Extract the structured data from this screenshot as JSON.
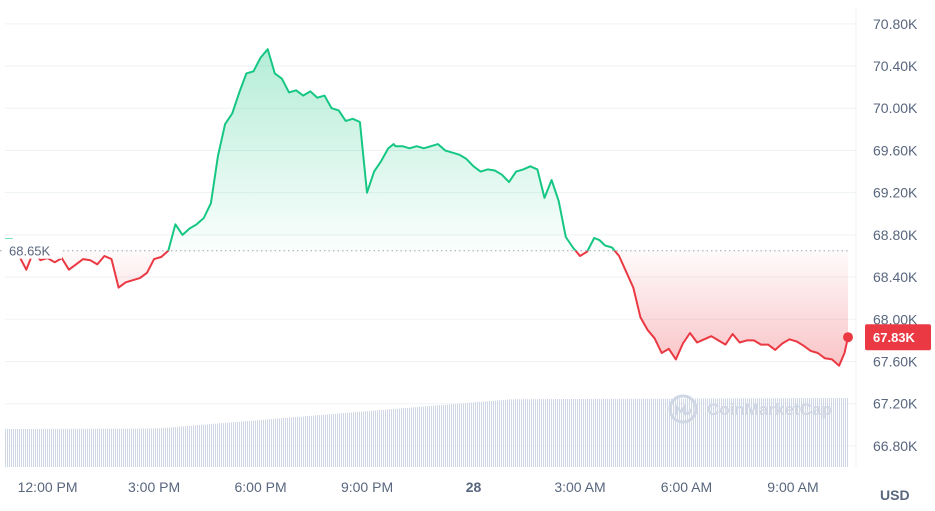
{
  "colors": {
    "up": "#16c784",
    "down": "#ea3943",
    "grid": "#eff2f5",
    "axis_text": "#58667e",
    "volume": "#cfd6e4",
    "watermark": "#cfd6e4"
  },
  "currency_label": "USD",
  "reference_label": "68.65K",
  "current_price_label": "67.83K",
  "watermark": {
    "text": "CoinMarketCap",
    "icon": "coinmarketcap-logo-icon"
  },
  "chart_data": {
    "type": "area",
    "reference_price": 68650,
    "current_price": 67830,
    "ylim": [
      66600,
      70950
    ],
    "y_ticks": [
      {
        "value": 70800,
        "label": "70.80K"
      },
      {
        "value": 70400,
        "label": "70.40K"
      },
      {
        "value": 70000,
        "label": "70.00K"
      },
      {
        "value": 69600,
        "label": "69.60K"
      },
      {
        "value": 69200,
        "label": "69.20K"
      },
      {
        "value": 68800,
        "label": "68.80K"
      },
      {
        "value": 68400,
        "label": "68.40K"
      },
      {
        "value": 68000,
        "label": "68.00K"
      },
      {
        "value": 67600,
        "label": "67.60K"
      },
      {
        "value": 67200,
        "label": "67.20K"
      },
      {
        "value": 66800,
        "label": "66.80K"
      }
    ],
    "xlim": [
      10.8,
      34.55
    ],
    "x_ticks": [
      {
        "value": 12,
        "label": "12:00 PM",
        "bold": false
      },
      {
        "value": 15,
        "label": "3:00 PM",
        "bold": false
      },
      {
        "value": 18,
        "label": "6:00 PM",
        "bold": false
      },
      {
        "value": 21,
        "label": "9:00 PM",
        "bold": false
      },
      {
        "value": 24,
        "label": "28",
        "bold": true
      },
      {
        "value": 27,
        "label": "3:00 AM",
        "bold": false
      },
      {
        "value": 30,
        "label": "6:00 AM",
        "bold": false
      },
      {
        "value": 33,
        "label": "9:00 AM",
        "bold": false
      }
    ],
    "series": [
      {
        "x": [
          10.8,
          11.0,
          11.2,
          11.4,
          11.6,
          11.8,
          12.0,
          12.2,
          12.4,
          12.6,
          12.8,
          13.0,
          13.2,
          13.4,
          13.6,
          13.8,
          14.0,
          14.2,
          14.4,
          14.6,
          14.8,
          15.0,
          15.2,
          15.4,
          15.6,
          15.8,
          16.0,
          16.2,
          16.4,
          16.6,
          16.8,
          17.0,
          17.2,
          17.4,
          17.6,
          17.8,
          18.0,
          18.2,
          18.4,
          18.6,
          18.8,
          19.0,
          19.2,
          19.4,
          19.6,
          19.8,
          20.0,
          20.2,
          20.4,
          20.6,
          20.8,
          21.0,
          21.2,
          21.4,
          21.6,
          21.75,
          21.8,
          22.0,
          22.2,
          22.4,
          22.6,
          22.8,
          23.0,
          23.2,
          23.4,
          23.6,
          23.8,
          24.0,
          24.2,
          24.4,
          24.6,
          24.8,
          25.0,
          25.2,
          25.4,
          25.6,
          25.8,
          26.0,
          26.2,
          26.4,
          26.6,
          26.8,
          27.0,
          27.2,
          27.4,
          27.55,
          27.7,
          27.9,
          28.1,
          28.3,
          28.5,
          28.7,
          28.9,
          29.1,
          29.3,
          29.5,
          29.7,
          29.9,
          30.1,
          30.3,
          30.5,
          30.7,
          30.9,
          31.1,
          31.3,
          31.5,
          31.7,
          31.9,
          32.1,
          32.3,
          32.5,
          32.7,
          32.9,
          33.1,
          33.3,
          33.5,
          33.7,
          33.9,
          34.1,
          34.3,
          34.45,
          34.55
        ],
        "y": [
          68760,
          68760,
          68600,
          68470,
          68640,
          68560,
          68580,
          68540,
          68580,
          68470,
          68520,
          68570,
          68560,
          68520,
          68600,
          68570,
          68300,
          68350,
          68370,
          68390,
          68440,
          68570,
          68590,
          68650,
          68900,
          68800,
          68860,
          68900,
          68960,
          69100,
          69550,
          69850,
          69950,
          70150,
          70330,
          70350,
          70480,
          70560,
          70330,
          70280,
          70150,
          70170,
          70120,
          70160,
          70100,
          70120,
          70000,
          69980,
          69880,
          69900,
          69870,
          69200,
          69400,
          69500,
          69620,
          69660,
          69640,
          69640,
          69620,
          69640,
          69620,
          69640,
          69660,
          69600,
          69580,
          69560,
          69520,
          69450,
          69400,
          69420,
          69410,
          69370,
          69300,
          69400,
          69420,
          69450,
          69420,
          69150,
          69320,
          69120,
          68780,
          68680,
          68600,
          68640,
          68770,
          68750,
          68700,
          68680,
          68600,
          68450,
          68300,
          68020,
          67900,
          67820,
          67680,
          67720,
          67620,
          67770,
          67870,
          67780,
          67810,
          67840,
          67800,
          67760,
          67860,
          67780,
          67800,
          67800,
          67760,
          67760,
          67710,
          67770,
          67810,
          67790,
          67750,
          67700,
          67680,
          67630,
          67620,
          67560,
          67680,
          67830
        ]
      }
    ],
    "volume_range": [
      0.55,
      1.0
    ]
  }
}
